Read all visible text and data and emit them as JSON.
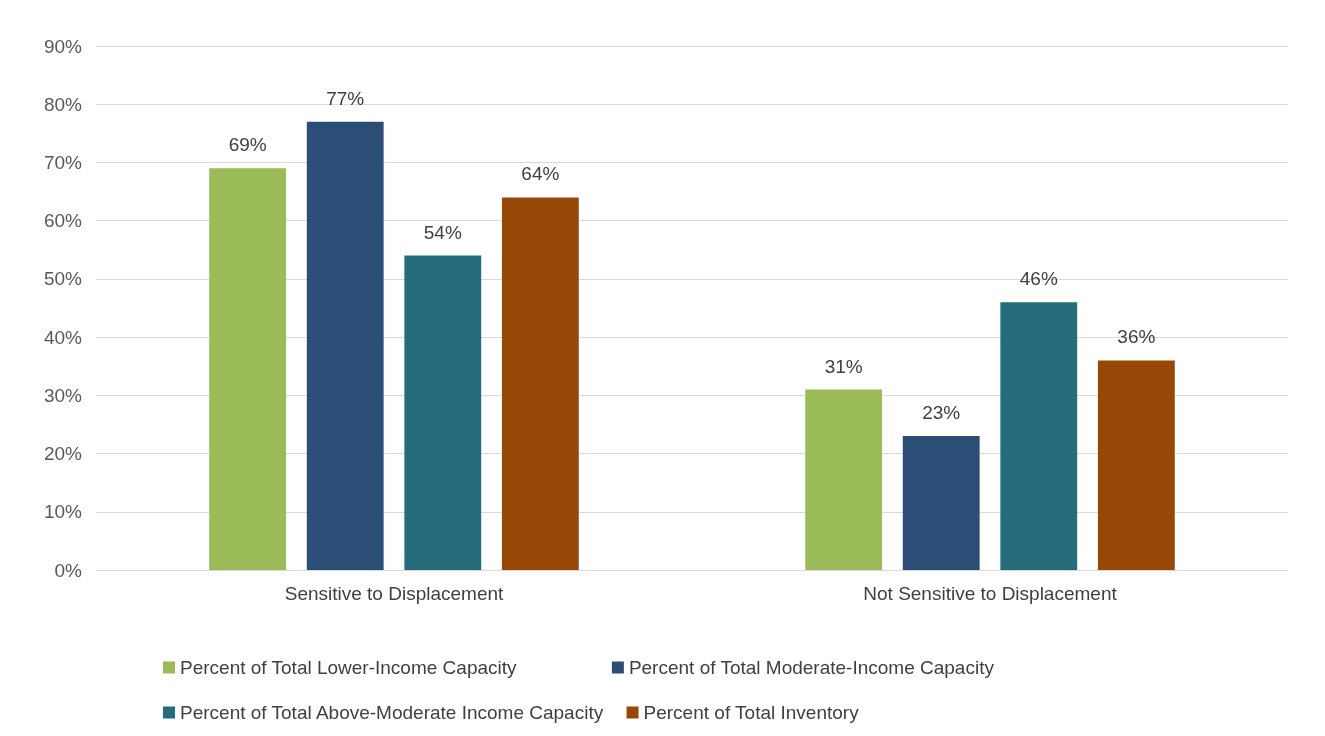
{
  "chart_data": {
    "type": "bar",
    "categories": [
      "Sensitive to Displacement",
      "Not Sensitive to Displacement"
    ],
    "series": [
      {
        "name": "Percent of Total Lower-Income Capacity",
        "color": "#9bbb59",
        "values": [
          69,
          31
        ],
        "value_labels": [
          "69%",
          "31%"
        ]
      },
      {
        "name": "Percent of Total Moderate-Income Capacity",
        "color": "#2c4d75",
        "values": [
          77,
          23
        ],
        "value_labels": [
          "77%",
          "23%"
        ]
      },
      {
        "name": "Percent of Total Above-Moderate Income Capacity",
        "color": "#266b7b",
        "values": [
          54,
          46
        ],
        "value_labels": [
          "54%",
          "46%"
        ]
      },
      {
        "name": "Percent of Total Inventory",
        "color": "#974706",
        "values": [
          64,
          36
        ],
        "value_labels": [
          "64%",
          "36%"
        ]
      }
    ],
    "ylim": [
      0,
      90
    ],
    "yticks": [
      {
        "value": 0,
        "label": "0%"
      },
      {
        "value": 10,
        "label": "10%"
      },
      {
        "value": 20,
        "label": "20%"
      },
      {
        "value": 30,
        "label": "30%"
      },
      {
        "value": 40,
        "label": "40%"
      },
      {
        "value": 50,
        "label": "50%"
      },
      {
        "value": 60,
        "label": "60%"
      },
      {
        "value": 70,
        "label": "70%"
      },
      {
        "value": 80,
        "label": "80%"
      },
      {
        "value": 90,
        "label": "90%"
      }
    ],
    "grid": "y",
    "legend": "bottom"
  }
}
